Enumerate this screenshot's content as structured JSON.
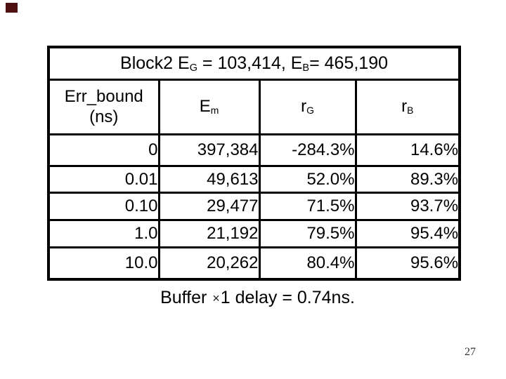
{
  "slide": {
    "page_number": "27",
    "corner_mark_color": "#4e1010"
  },
  "table": {
    "title": {
      "pre": "Block2 E",
      "sub1": "G",
      "mid": " = 103,414, E",
      "sub2": "B",
      "post": "= 465,190"
    },
    "headers": {
      "col1_line1": "Err_bound",
      "col1_line2": "(ns)",
      "col2": {
        "base": "E",
        "sub": "m"
      },
      "col3": {
        "base": "r",
        "sub": "G"
      },
      "col4": {
        "base": "r",
        "sub": "B"
      }
    },
    "rows": [
      {
        "err_bound": "0",
        "em": "397,384",
        "rg": "-284.3%",
        "rb": "14.6%"
      },
      {
        "err_bound": "0.01",
        "em": "49,613",
        "rg": "52.0%",
        "rb": "89.3%"
      },
      {
        "err_bound": "0.10",
        "em": "29,477",
        "rg": "71.5%",
        "rb": "93.7%"
      },
      {
        "err_bound": "1.0",
        "em": "21,192",
        "rg": "79.5%",
        "rb": "95.4%"
      },
      {
        "err_bound": "10.0",
        "em": "20,262",
        "rg": "80.4%",
        "rb": "95.6%"
      }
    ]
  },
  "caption": {
    "before": "Buffer ",
    "times": "×",
    "after": "1 delay = 0.74ns."
  }
}
